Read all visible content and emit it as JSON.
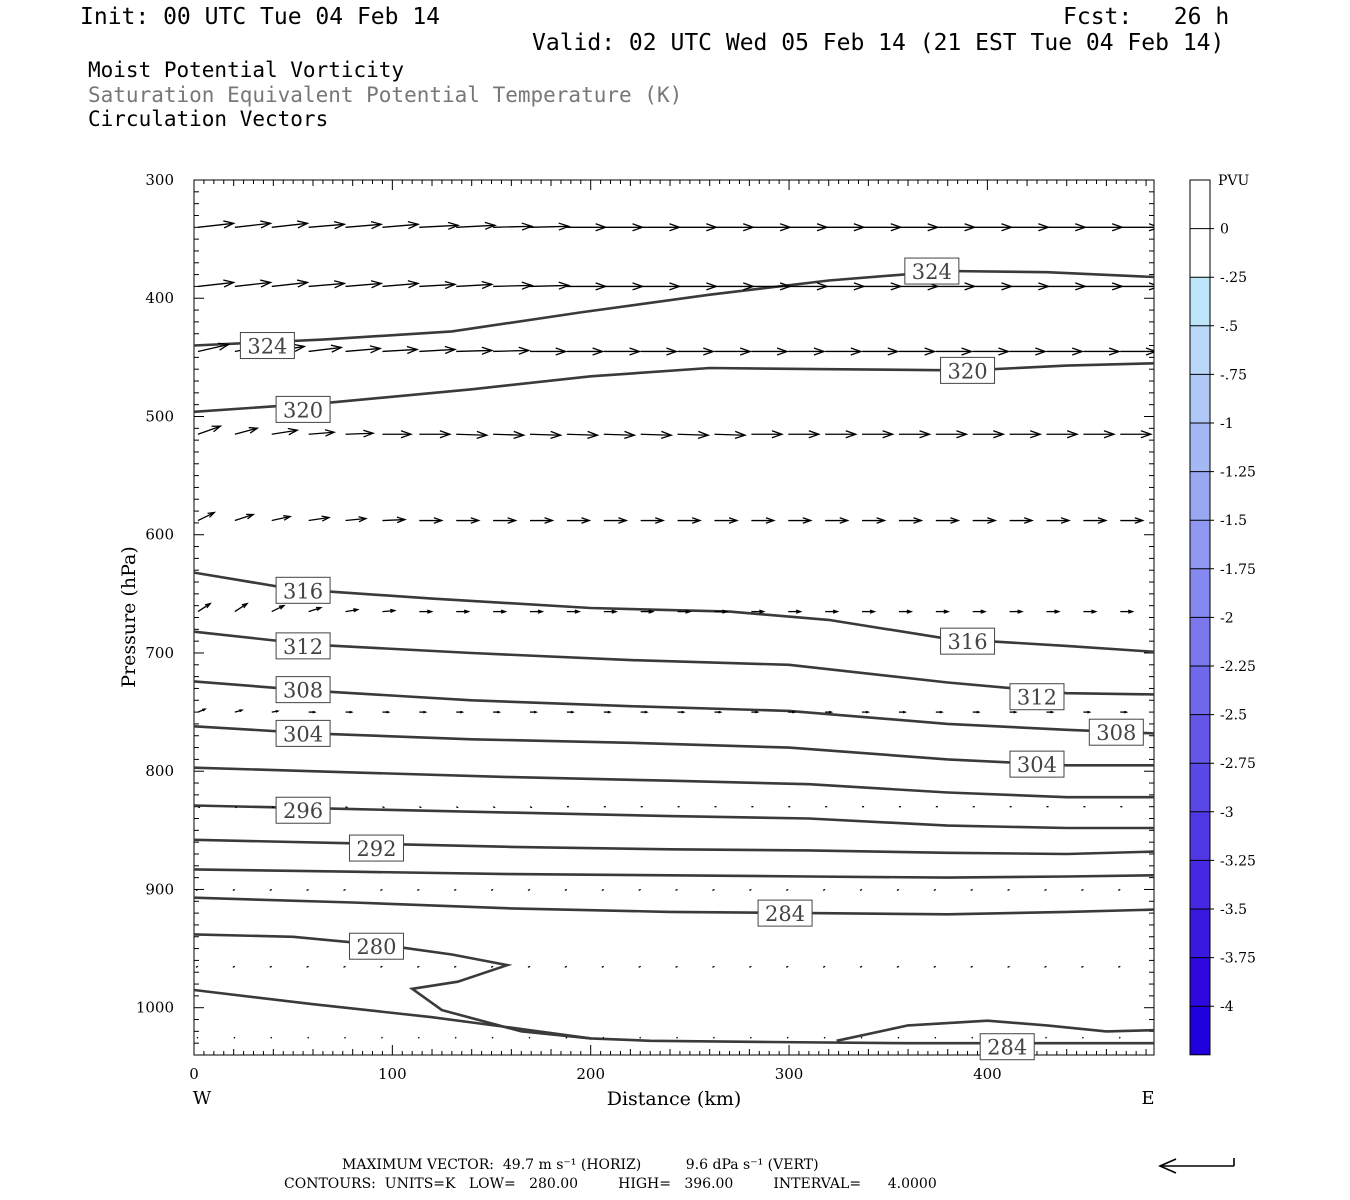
{
  "header": {
    "init": "Init: 00 UTC Tue 04 Feb 14",
    "fcst": "Fcst:   26 h",
    "valid": "Valid: 02 UTC Wed 05 Feb 14 (21 EST Tue 04 Feb 14)",
    "field1": "Moist Potential Vorticity",
    "field2": "Saturation Equivalent Potential Temperature (K)",
    "field3": "Circulation Vectors"
  },
  "footer": {
    "max_vector": "MAXIMUM VECTOR:  49.7 m s⁻¹ (HORIZ)          9.6 dPa s⁻¹ (VERT)",
    "contours": "CONTOURS:  UNITS=K   LOW=   280.00         HIGH=   396.00         INTERVAL=      4.0000"
  },
  "colorbar": {
    "unit": "PVU",
    "labels": [
      "0",
      "-.25",
      "-.5",
      "-.75",
      "-1",
      "-1.25",
      "-1.5",
      "-1.75",
      "-2",
      "-2.25",
      "-2.5",
      "-2.75",
      "-3",
      "-3.25",
      "-3.5",
      "-3.75",
      "-4"
    ],
    "colors": [
      "#ffffff",
      "#ffffff",
      "#bde6fb",
      "#b9d8f8",
      "#afc8f6",
      "#a4b8f4",
      "#9aa8f2",
      "#8f98f0",
      "#8588ee",
      "#7a78ec",
      "#6f68ea",
      "#6558e8",
      "#5a48e6",
      "#4f38e4",
      "#4528e2",
      "#3a18e0",
      "#2e08de",
      "#1f00dc"
    ]
  },
  "chart_data": {
    "type": "cross-section",
    "xlabel": "Distance (km)",
    "ylabel": "Pressure (hPa)",
    "x_ticks": [
      0,
      100,
      200,
      300,
      400
    ],
    "y_ticks": [
      300,
      400,
      500,
      600,
      700,
      800,
      900,
      1000
    ],
    "xlim": [
      0,
      484
    ],
    "ylim": [
      300,
      1040
    ],
    "left_label": "W",
    "right_label": "E",
    "contour_units": "K",
    "contours": [
      {
        "value": 324,
        "label_at": [
          [
            37,
            440
          ],
          [
            372,
            377
          ]
        ],
        "points": [
          [
            0,
            440
          ],
          [
            65,
            435
          ],
          [
            130,
            428
          ],
          [
            195,
            412
          ],
          [
            260,
            397
          ],
          [
            320,
            385
          ],
          [
            380,
            377
          ],
          [
            430,
            378
          ],
          [
            484,
            382
          ]
        ]
      },
      {
        "value": 320,
        "label_at": [
          [
            55,
            494
          ],
          [
            390,
            461
          ]
        ],
        "points": [
          [
            0,
            496
          ],
          [
            70,
            488
          ],
          [
            140,
            477
          ],
          [
            200,
            466
          ],
          [
            260,
            459
          ],
          [
            320,
            460
          ],
          [
            390,
            461
          ],
          [
            440,
            457
          ],
          [
            484,
            455
          ]
        ]
      },
      {
        "value": 316,
        "label_at": [
          [
            55,
            647
          ],
          [
            390,
            690
          ]
        ],
        "points": [
          [
            0,
            632
          ],
          [
            50,
            646
          ],
          [
            120,
            654
          ],
          [
            200,
            662
          ],
          [
            270,
            665
          ],
          [
            320,
            672
          ],
          [
            380,
            688
          ],
          [
            440,
            694
          ],
          [
            484,
            699
          ]
        ]
      },
      {
        "value": 312,
        "label_at": [
          [
            55,
            694
          ],
          [
            425,
            737
          ]
        ],
        "points": [
          [
            0,
            682
          ],
          [
            60,
            693
          ],
          [
            140,
            700
          ],
          [
            220,
            706
          ],
          [
            300,
            710
          ],
          [
            380,
            725
          ],
          [
            440,
            734
          ],
          [
            484,
            735
          ]
        ]
      },
      {
        "value": 308,
        "label_at": [
          [
            55,
            731
          ],
          [
            465,
            767
          ]
        ],
        "points": [
          [
            0,
            724
          ],
          [
            60,
            732
          ],
          [
            140,
            740
          ],
          [
            220,
            745
          ],
          [
            300,
            749
          ],
          [
            380,
            760
          ],
          [
            440,
            765
          ],
          [
            484,
            768
          ]
        ]
      },
      {
        "value": 304,
        "label_at": [
          [
            55,
            768
          ],
          [
            425,
            794
          ]
        ],
        "points": [
          [
            0,
            762
          ],
          [
            60,
            768
          ],
          [
            140,
            773
          ],
          [
            220,
            776
          ],
          [
            300,
            780
          ],
          [
            380,
            790
          ],
          [
            440,
            795
          ],
          [
            484,
            795
          ]
        ]
      },
      {
        "value": 300,
        "label_at": [],
        "points": [
          [
            0,
            797
          ],
          [
            80,
            801
          ],
          [
            160,
            805
          ],
          [
            240,
            808
          ],
          [
            310,
            811
          ],
          [
            380,
            818
          ],
          [
            440,
            822
          ],
          [
            484,
            822
          ]
        ]
      },
      {
        "value": 296,
        "label_at": [
          [
            55,
            833
          ]
        ],
        "points": [
          [
            0,
            829
          ],
          [
            80,
            832
          ],
          [
            160,
            835
          ],
          [
            240,
            838
          ],
          [
            310,
            840
          ],
          [
            380,
            846
          ],
          [
            440,
            848
          ],
          [
            484,
            848
          ]
        ]
      },
      {
        "value": 292,
        "label_at": [
          [
            92,
            865
          ]
        ],
        "points": [
          [
            0,
            858
          ],
          [
            80,
            861
          ],
          [
            160,
            864
          ],
          [
            240,
            866
          ],
          [
            310,
            867
          ],
          [
            380,
            869
          ],
          [
            440,
            870
          ],
          [
            484,
            868
          ]
        ]
      },
      {
        "value": 288,
        "label_at": [],
        "points": [
          [
            0,
            883
          ],
          [
            80,
            885
          ],
          [
            160,
            887
          ],
          [
            240,
            888
          ],
          [
            310,
            889
          ],
          [
            380,
            890
          ],
          [
            440,
            889
          ],
          [
            484,
            888
          ]
        ]
      },
      {
        "value": 284,
        "label_at": [
          [
            298,
            920
          ],
          [
            410,
            1033
          ]
        ],
        "points": [
          [
            0,
            907
          ],
          [
            80,
            911
          ],
          [
            160,
            916
          ],
          [
            240,
            919
          ],
          [
            310,
            920
          ],
          [
            380,
            921
          ],
          [
            440,
            919
          ],
          [
            484,
            917
          ]
        ]
      },
      {
        "value": 280,
        "label_at": [
          [
            92,
            948
          ]
        ],
        "points": [
          [
            0,
            938
          ],
          [
            50,
            940
          ],
          [
            100,
            948
          ],
          [
            130,
            955
          ],
          [
            158,
            964
          ],
          [
            133,
            978
          ],
          [
            110,
            984
          ],
          [
            125,
            1002
          ],
          [
            165,
            1020
          ],
          [
            200,
            1026
          ],
          [
            230,
            1028
          ],
          [
            290,
            1029
          ],
          [
            360,
            1030
          ],
          [
            440,
            1030
          ],
          [
            484,
            1030
          ]
        ]
      },
      {
        "value": 280,
        "label_at": [],
        "points": [
          [
            0,
            985
          ],
          [
            60,
            997
          ],
          [
            120,
            1008
          ],
          [
            165,
            1018
          ],
          [
            200,
            1026
          ]
        ]
      },
      {
        "value": 284,
        "label_at": [],
        "points": [
          [
            324,
            1028
          ],
          [
            360,
            1015
          ],
          [
            400,
            1011
          ],
          [
            430,
            1015
          ],
          [
            460,
            1020
          ],
          [
            484,
            1019
          ]
        ]
      }
    ],
    "vector_rows": [
      {
        "p": 340,
        "u": [
          35,
          35,
          35,
          35,
          35,
          35,
          38,
          38,
          38,
          38,
          38,
          38,
          38,
          38,
          38,
          38,
          38,
          38,
          38,
          38,
          38,
          38,
          38,
          38,
          38,
          38
        ],
        "dp": [
          -4,
          -4,
          -4,
          -3,
          -3,
          -3,
          -2,
          -2,
          -1,
          -1,
          0,
          0,
          0,
          0,
          0,
          0,
          0,
          0,
          0,
          0,
          0,
          0,
          0,
          0,
          0,
          0
        ]
      },
      {
        "p": 390,
        "u": [
          35,
          35,
          35,
          35,
          35,
          35,
          35,
          35,
          38,
          38,
          38,
          38,
          38,
          38,
          38,
          38,
          38,
          38,
          38,
          38,
          38,
          38,
          38,
          38,
          38,
          38
        ],
        "dp": [
          -4,
          -4,
          -4,
          -3,
          -3,
          -3,
          -2,
          -2,
          -1,
          -1,
          0,
          0,
          0,
          0,
          0,
          0,
          0,
          0,
          0,
          0,
          0,
          0,
          0,
          0,
          0,
          0
        ]
      },
      {
        "p": 445,
        "u": [
          30,
          30,
          32,
          32,
          34,
          34,
          35,
          35,
          35,
          35,
          35,
          35,
          35,
          35,
          35,
          35,
          35,
          35,
          35,
          35,
          35,
          35,
          35,
          35,
          35,
          35
        ],
        "dp": [
          -7,
          -6,
          -5,
          -4,
          -3,
          -2,
          -2,
          -1,
          -1,
          0,
          0,
          0,
          0,
          0,
          0,
          0,
          0,
          0,
          0,
          0,
          0,
          0,
          0,
          0,
          0,
          0
        ]
      },
      {
        "p": 515,
        "u": [
          22,
          22,
          25,
          25,
          27,
          28,
          30,
          30,
          30,
          30,
          30,
          30,
          30,
          30,
          30,
          30,
          30,
          30,
          30,
          30,
          30,
          30,
          30,
          30,
          30,
          30
        ],
        "dp": [
          -8,
          -6,
          -4,
          -2,
          -1,
          0,
          0,
          1,
          1,
          1,
          1,
          1,
          1,
          1,
          1,
          0,
          0,
          0,
          0,
          0,
          0,
          0,
          0,
          0,
          0,
          0
        ]
      },
      {
        "p": 588,
        "u": [
          16,
          18,
          18,
          20,
          20,
          22,
          22,
          22,
          22,
          22,
          22,
          22,
          22,
          22,
          22,
          22,
          22,
          22,
          22,
          22,
          22,
          22,
          22,
          22,
          22,
          22
        ],
        "dp": [
          -8,
          -6,
          -4,
          -3,
          -2,
          -1,
          0,
          0,
          0,
          0,
          0,
          0,
          0,
          0,
          0,
          0,
          0,
          0,
          0,
          0,
          0,
          0,
          0,
          0,
          0,
          0
        ]
      },
      {
        "p": 665,
        "u": [
          12,
          12,
          12,
          12,
          12,
          12,
          12,
          12,
          12,
          12,
          12,
          12,
          12,
          12,
          12,
          12,
          12,
          12,
          12,
          12,
          12,
          12,
          12,
          12,
          12,
          12
        ],
        "dp": [
          -8,
          -8,
          -6,
          -4,
          -2,
          -1,
          0,
          0,
          0,
          0,
          0,
          0,
          0,
          0,
          0,
          0,
          0,
          0,
          0,
          0,
          0,
          0,
          0,
          0,
          0,
          0
        ]
      },
      {
        "p": 750,
        "u": [
          7,
          7,
          6,
          6,
          6,
          6,
          6,
          6,
          6,
          6,
          6,
          6,
          6,
          6,
          6,
          6,
          6,
          6,
          6,
          6,
          6,
          6,
          6,
          6,
          6,
          6
        ],
        "dp": [
          -3,
          -2,
          -1,
          0,
          0,
          0,
          0,
          0,
          0,
          0,
          0,
          0,
          0,
          0,
          0,
          0,
          0,
          0,
          0,
          0,
          0,
          0,
          0,
          0,
          0,
          0
        ]
      },
      {
        "p": 830,
        "u": [
          2,
          2,
          2,
          2,
          2,
          2,
          2,
          2,
          2,
          2,
          2,
          2,
          2,
          2,
          2,
          2,
          2,
          2,
          2,
          2,
          2,
          2,
          2,
          2,
          2,
          2
        ],
        "dp": [
          1,
          1,
          1,
          1,
          1,
          1,
          1,
          1,
          1,
          1,
          0,
          0,
          0,
          0,
          0,
          0,
          0,
          0,
          0,
          0,
          0,
          0,
          0,
          0,
          0,
          0
        ]
      },
      {
        "p": 900,
        "u": [
          -2,
          -2,
          -2,
          -2,
          -2,
          -2,
          -2,
          -2,
          -2,
          -2,
          -2,
          -2,
          -2,
          -2,
          -2,
          -2,
          -2,
          -2,
          -2,
          -2,
          -2,
          -2,
          -2,
          -2,
          -2,
          -2
        ],
        "dp": [
          1,
          1,
          1,
          1,
          1,
          1,
          1,
          1,
          1,
          1,
          1,
          1,
          1,
          1,
          1,
          1,
          1,
          1,
          1,
          1,
          1,
          1,
          1,
          1,
          1,
          1
        ]
      },
      {
        "p": 965,
        "u": [
          -2,
          -2,
          -2,
          -2,
          -2,
          -2,
          -2,
          -2,
          -2,
          -2,
          -2,
          -2,
          -2,
          -2,
          -2,
          -2,
          -2,
          -2,
          -2,
          -2,
          -2,
          -2,
          -2,
          -2,
          -2,
          -2
        ],
        "dp": [
          1,
          1,
          1,
          1,
          1,
          1,
          1,
          1,
          1,
          1,
          1,
          1,
          1,
          1,
          1,
          1,
          1,
          1,
          1,
          1,
          1,
          1,
          1,
          1,
          1,
          1
        ]
      },
      {
        "p": 1025,
        "u": [
          -1,
          -1,
          -1,
          -1,
          -1,
          -1,
          -1,
          -1,
          -1,
          -1,
          -1,
          -1,
          -1,
          -1,
          -1,
          -1,
          -1,
          -1,
          -1,
          -1,
          -1,
          -1,
          -1,
          -1,
          -1,
          -1
        ],
        "dp": [
          1,
          1,
          1,
          1,
          1,
          1,
          1,
          1,
          1,
          1,
          1,
          1,
          1,
          1,
          1,
          1,
          1,
          1,
          1,
          1,
          1,
          1,
          1,
          1,
          1,
          1
        ]
      }
    ]
  }
}
